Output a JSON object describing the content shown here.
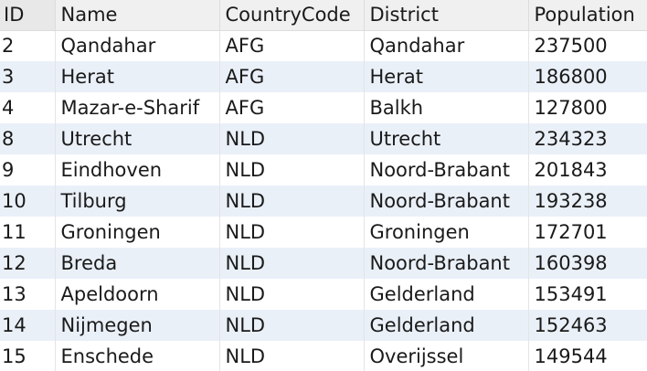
{
  "columns": {
    "id": "ID",
    "name": "Name",
    "country_code": "CountryCode",
    "district": "District",
    "population": "Population"
  },
  "rows": [
    {
      "id": "2",
      "name": "Qandahar",
      "country_code": "AFG",
      "district": "Qandahar",
      "population": "237500"
    },
    {
      "id": "3",
      "name": "Herat",
      "country_code": "AFG",
      "district": "Herat",
      "population": "186800"
    },
    {
      "id": "4",
      "name": "Mazar-e-Sharif",
      "country_code": "AFG",
      "district": "Balkh",
      "population": "127800"
    },
    {
      "id": "8",
      "name": "Utrecht",
      "country_code": "NLD",
      "district": "Utrecht",
      "population": "234323"
    },
    {
      "id": "9",
      "name": "Eindhoven",
      "country_code": "NLD",
      "district": "Noord-Brabant",
      "population": "201843"
    },
    {
      "id": "10",
      "name": "Tilburg",
      "country_code": "NLD",
      "district": "Noord-Brabant",
      "population": "193238"
    },
    {
      "id": "11",
      "name": "Groningen",
      "country_code": "NLD",
      "district": "Groningen",
      "population": "172701"
    },
    {
      "id": "12",
      "name": "Breda",
      "country_code": "NLD",
      "district": "Noord-Brabant",
      "population": "160398"
    },
    {
      "id": "13",
      "name": "Apeldoorn",
      "country_code": "NLD",
      "district": "Gelderland",
      "population": "153491"
    },
    {
      "id": "14",
      "name": "Nijmegen",
      "country_code": "NLD",
      "district": "Gelderland",
      "population": "152463"
    },
    {
      "id": "15",
      "name": "Enschede",
      "country_code": "NLD",
      "district": "Overijssel",
      "population": "149544"
    }
  ]
}
